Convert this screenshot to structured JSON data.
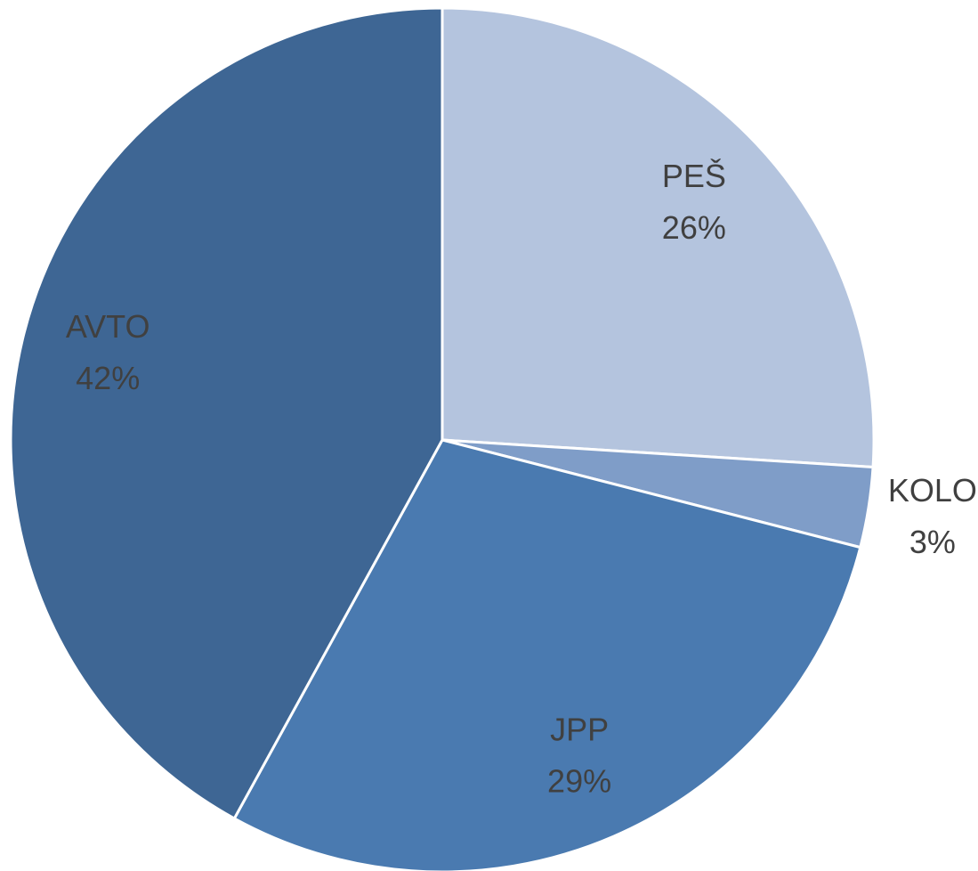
{
  "chart_data": {
    "type": "pie",
    "categories": [
      "PEŠ",
      "KOLO",
      "JPP",
      "AVTO"
    ],
    "values": [
      26,
      3,
      29,
      42
    ],
    "value_labels": [
      "26%",
      "3%",
      "29%",
      "42%"
    ],
    "colors": [
      "#b4c4de",
      "#7f9dc8",
      "#4a7ab0",
      "#3e6694"
    ]
  }
}
